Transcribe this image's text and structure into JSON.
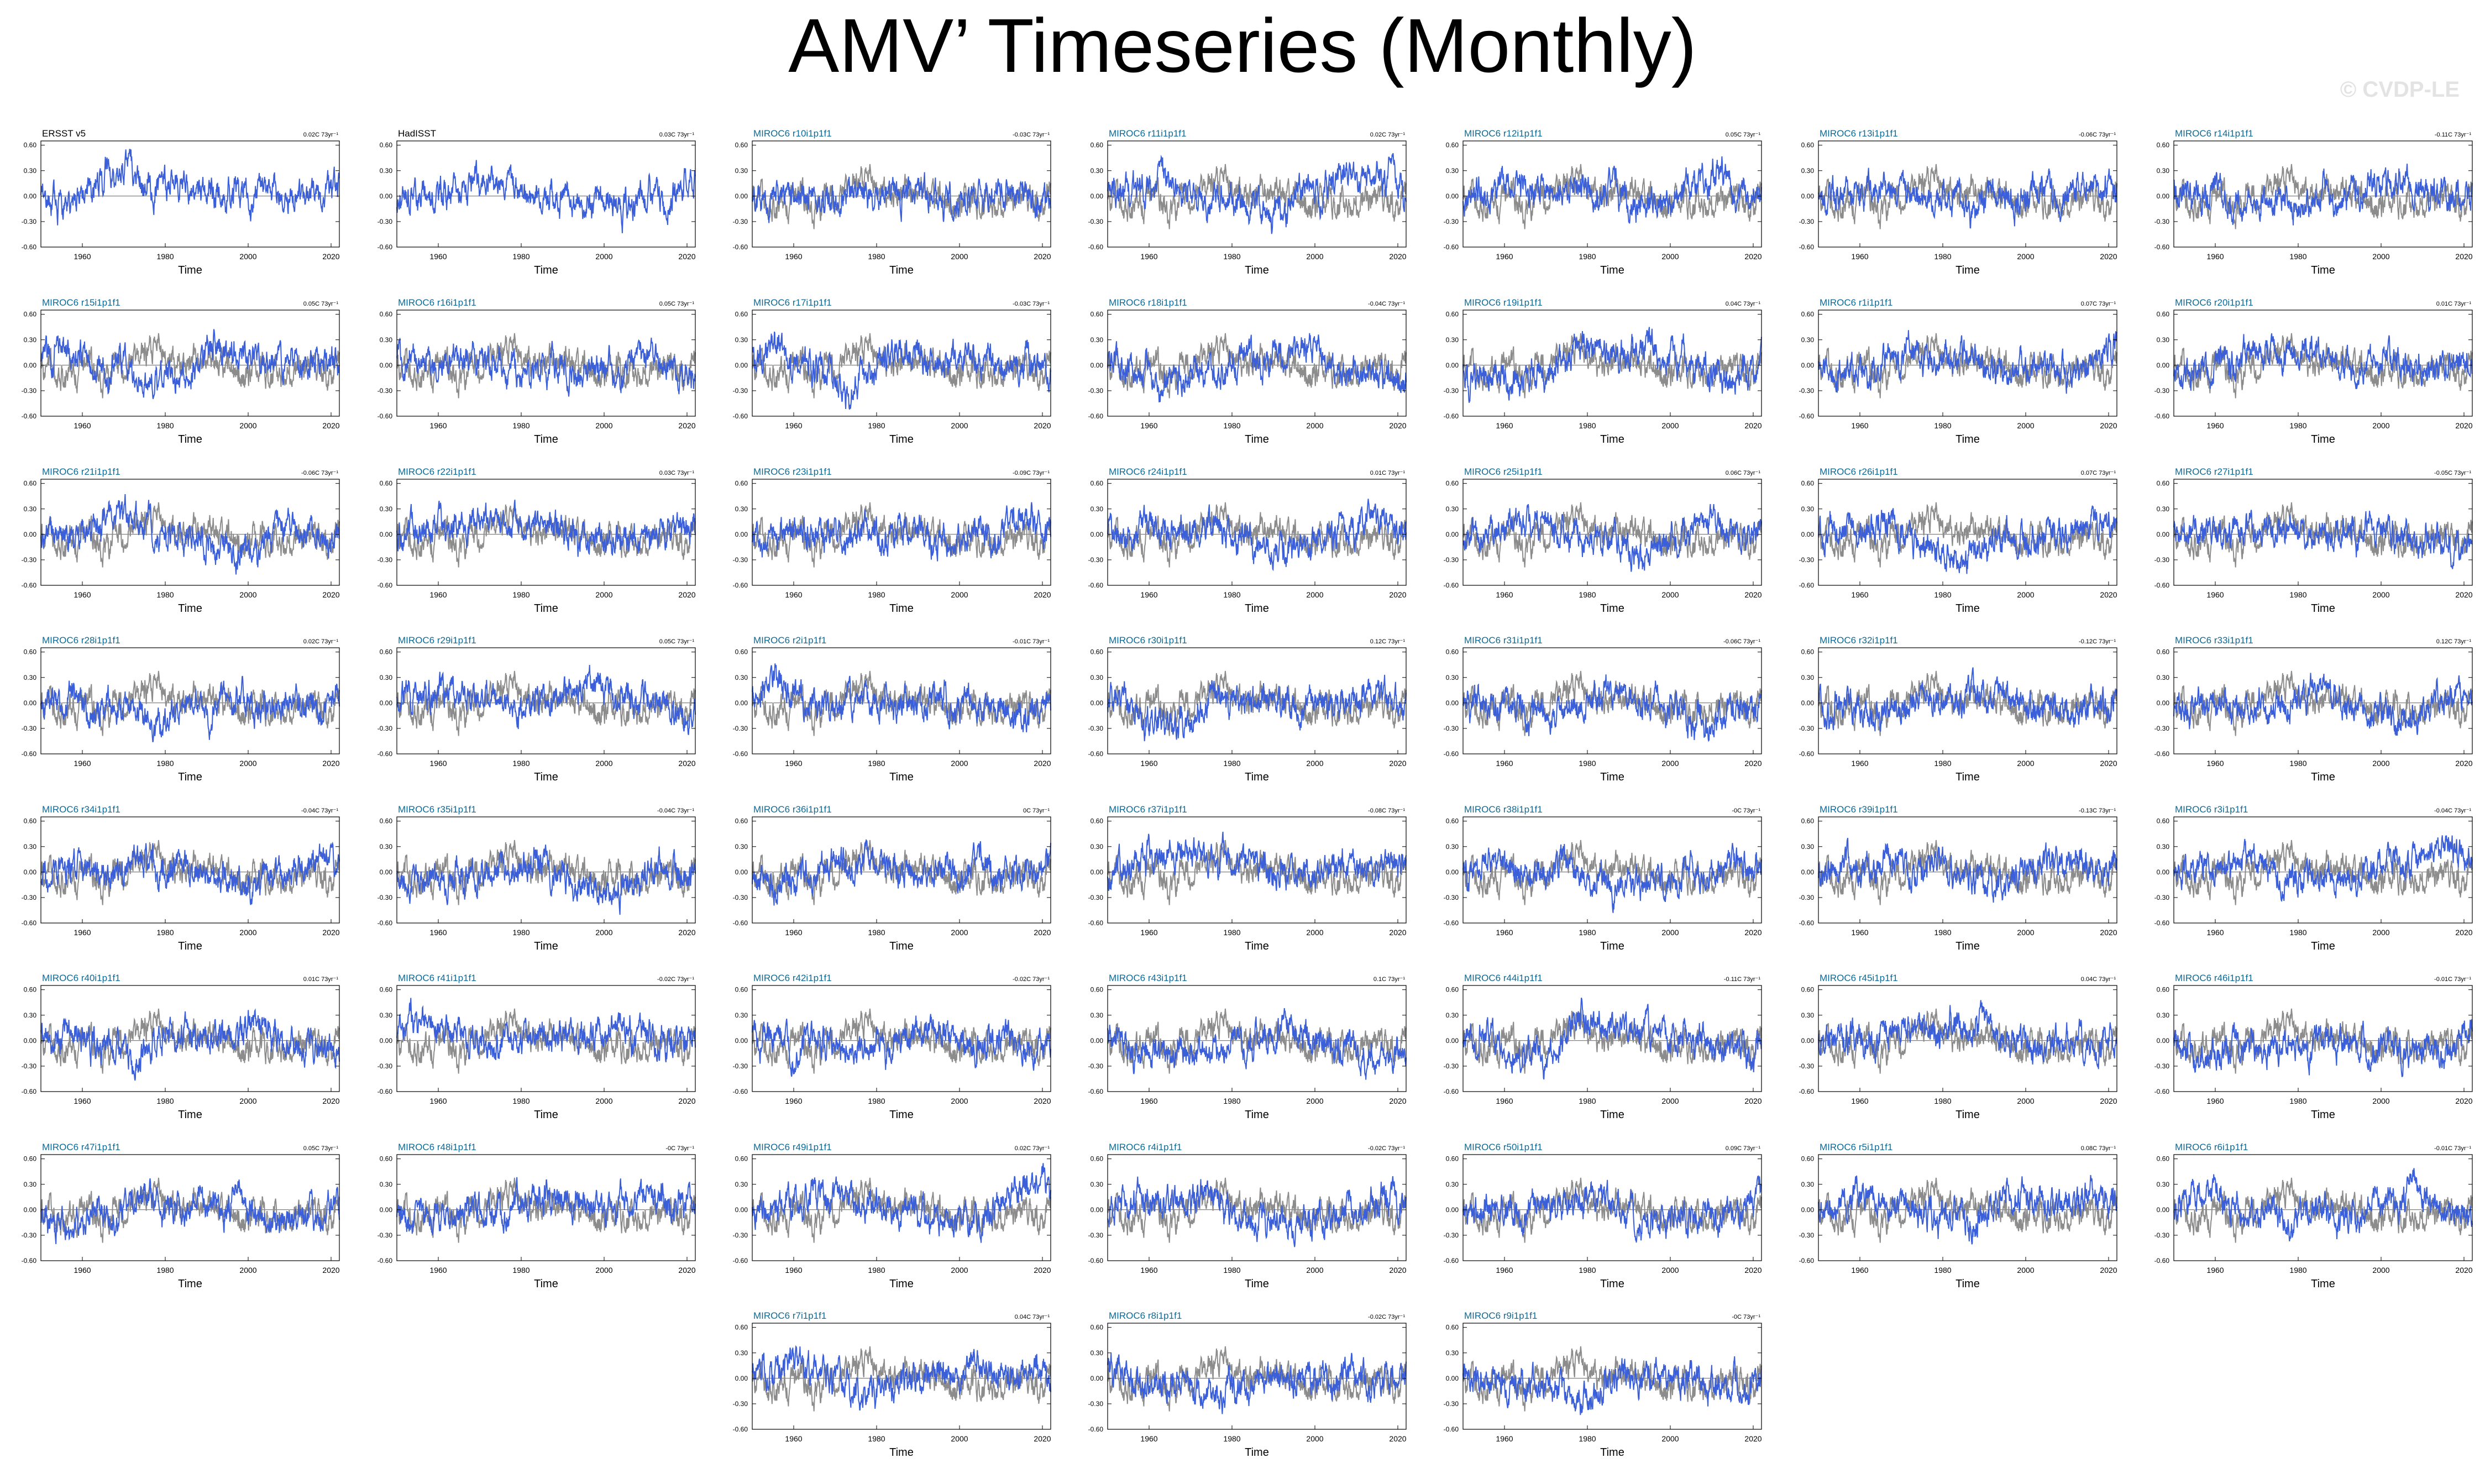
{
  "title": "AMV’ Timeseries (Monthly)",
  "watermark": "© CVDP-LE",
  "colors": {
    "member": "#3a5fd9",
    "observation": "#8c8c8c",
    "label_obs": "#000000",
    "label_model": "#0d6a96"
  },
  "chart_data": {
    "type": "line",
    "description_units": "AMV anomaly (C)",
    "x": {
      "range": [
        1950,
        2022
      ],
      "ticks": [
        1960,
        1980,
        2000,
        2020
      ],
      "label": "Time"
    },
    "y": {
      "range": [
        -0.6,
        0.65
      ],
      "ticks": [
        0.6,
        0.3,
        0.0,
        -0.3,
        -0.6
      ],
      "tick_labels": [
        "0.60",
        "0.30",
        "0.00",
        "-0.30",
        "-0.60"
      ]
    },
    "panels": [
      {
        "name": "ERSST v5",
        "trend": "0.02C 73yr⁻¹",
        "obs": true
      },
      {
        "name": "HadISST",
        "trend": "0.03C 73yr⁻¹",
        "obs": true
      },
      {
        "name": "MIROC6 r10i1p1f1",
        "trend": "-0.03C 73yr⁻¹"
      },
      {
        "name": "MIROC6 r11i1p1f1",
        "trend": "0.02C 73yr⁻¹"
      },
      {
        "name": "MIROC6 r12i1p1f1",
        "trend": "0.05C 73yr⁻¹"
      },
      {
        "name": "MIROC6 r13i1p1f1",
        "trend": "-0.06C 73yr⁻¹"
      },
      {
        "name": "MIROC6 r14i1p1f1",
        "trend": "-0.11C 73yr⁻¹"
      },
      {
        "name": "MIROC6 r15i1p1f1",
        "trend": "0.05C 73yr⁻¹"
      },
      {
        "name": "MIROC6 r16i1p1f1",
        "trend": "0.05C 73yr⁻¹"
      },
      {
        "name": "MIROC6 r17i1p1f1",
        "trend": "-0.03C 73yr⁻¹"
      },
      {
        "name": "MIROC6 r18i1p1f1",
        "trend": "-0.04C 73yr⁻¹"
      },
      {
        "name": "MIROC6 r19i1p1f1",
        "trend": "0.04C 73yr⁻¹"
      },
      {
        "name": "MIROC6 r1i1p1f1",
        "trend": "0.07C 73yr⁻¹"
      },
      {
        "name": "MIROC6 r20i1p1f1",
        "trend": "0.01C 73yr⁻¹"
      },
      {
        "name": "MIROC6 r21i1p1f1",
        "trend": "-0.06C 73yr⁻¹"
      },
      {
        "name": "MIROC6 r22i1p1f1",
        "trend": "0.03C 73yr⁻¹"
      },
      {
        "name": "MIROC6 r23i1p1f1",
        "trend": "-0.09C 73yr⁻¹"
      },
      {
        "name": "MIROC6 r24i1p1f1",
        "trend": "0.01C 73yr⁻¹"
      },
      {
        "name": "MIROC6 r25i1p1f1",
        "trend": "0.06C 73yr⁻¹"
      },
      {
        "name": "MIROC6 r26i1p1f1",
        "trend": "0.07C 73yr⁻¹"
      },
      {
        "name": "MIROC6 r27i1p1f1",
        "trend": "-0.05C 73yr⁻¹"
      },
      {
        "name": "MIROC6 r28i1p1f1",
        "trend": "0.02C 73yr⁻¹"
      },
      {
        "name": "MIROC6 r29i1p1f1",
        "trend": "0.05C 73yr⁻¹"
      },
      {
        "name": "MIROC6 r2i1p1f1",
        "trend": "-0.01C 73yr⁻¹"
      },
      {
        "name": "MIROC6 r30i1p1f1",
        "trend": "0.12C 73yr⁻¹"
      },
      {
        "name": "MIROC6 r31i1p1f1",
        "trend": "-0.06C 73yr⁻¹"
      },
      {
        "name": "MIROC6 r32i1p1f1",
        "trend": "-0.12C 73yr⁻¹"
      },
      {
        "name": "MIROC6 r33i1p1f1",
        "trend": "0.12C 73yr⁻¹"
      },
      {
        "name": "MIROC6 r34i1p1f1",
        "trend": "-0.04C 73yr⁻¹"
      },
      {
        "name": "MIROC6 r35i1p1f1",
        "trend": "-0.04C 73yr⁻¹"
      },
      {
        "name": "MIROC6 r36i1p1f1",
        "trend": "0C 73yr⁻¹"
      },
      {
        "name": "MIROC6 r37i1p1f1",
        "trend": "-0.08C 73yr⁻¹"
      },
      {
        "name": "MIROC6 r38i1p1f1",
        "trend": "-0C 73yr⁻¹"
      },
      {
        "name": "MIROC6 r39i1p1f1",
        "trend": "-0.13C 73yr⁻¹"
      },
      {
        "name": "MIROC6 r3i1p1f1",
        "trend": "-0.04C 73yr⁻¹"
      },
      {
        "name": "MIROC6 r40i1p1f1",
        "trend": "0.01C 73yr⁻¹"
      },
      {
        "name": "MIROC6 r41i1p1f1",
        "trend": "-0.02C 73yr⁻¹"
      },
      {
        "name": "MIROC6 r42i1p1f1",
        "trend": "-0.02C 73yr⁻¹"
      },
      {
        "name": "MIROC6 r43i1p1f1",
        "trend": "0.1C 73yr⁻¹"
      },
      {
        "name": "MIROC6 r44i1p1f1",
        "trend": "-0.11C 73yr⁻¹"
      },
      {
        "name": "MIROC6 r45i1p1f1",
        "trend": "0.04C 73yr⁻¹"
      },
      {
        "name": "MIROC6 r46i1p1f1",
        "trend": "-0.01C 73yr⁻¹"
      },
      {
        "name": "MIROC6 r47i1p1f1",
        "trend": "0.05C 73yr⁻¹"
      },
      {
        "name": "MIROC6 r48i1p1f1",
        "trend": "-0C 73yr⁻¹"
      },
      {
        "name": "MIROC6 r49i1p1f1",
        "trend": "0.02C 73yr⁻¹"
      },
      {
        "name": "MIROC6 r4i1p1f1",
        "trend": "-0.02C 73yr⁻¹"
      },
      {
        "name": "MIROC6 r50i1p1f1",
        "trend": "0.09C 73yr⁻¹"
      },
      {
        "name": "MIROC6 r5i1p1f1",
        "trend": "0.08C 73yr⁻¹"
      },
      {
        "name": "MIROC6 r6i1p1f1",
        "trend": "-0.01C 73yr⁻¹"
      },
      {
        "name": "MIROC6 r7i1p1f1",
        "trend": "0.04C 73yr⁻¹"
      },
      {
        "name": "MIROC6 r8i1p1f1",
        "trend": "-0.02C 73yr⁻¹"
      },
      {
        "name": "MIROC6 r9i1p1f1",
        "trend": "-0C 73yr⁻¹"
      }
    ]
  }
}
